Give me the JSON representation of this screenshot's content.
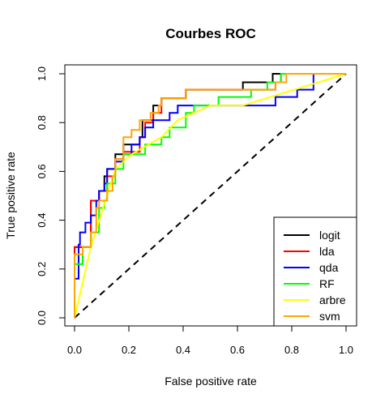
{
  "chart_data": {
    "type": "line",
    "title": "Courbes ROC",
    "xlabel": "False positive rate",
    "ylabel": "True positive rate",
    "xlim": [
      0,
      1
    ],
    "ylim": [
      0,
      1
    ],
    "xticks": [
      "0.0",
      "0.2",
      "0.4",
      "0.6",
      "0.8",
      "1.0"
    ],
    "yticks": [
      "0.0",
      "0.2",
      "0.4",
      "0.6",
      "0.8",
      "1.0"
    ],
    "legend_position": "bottom-right",
    "grid": false,
    "reference_line": {
      "style": "dashed",
      "color": "#000000",
      "points": [
        [
          0,
          0
        ],
        [
          1,
          1
        ]
      ]
    },
    "series": [
      {
        "name": "logit",
        "color": "#000000",
        "points": [
          [
            0,
            0
          ],
          [
            0,
            0.29
          ],
          [
            0.06,
            0.29
          ],
          [
            0.06,
            0.48
          ],
          [
            0.09,
            0.48
          ],
          [
            0.09,
            0.52
          ],
          [
            0.11,
            0.52
          ],
          [
            0.11,
            0.58
          ],
          [
            0.12,
            0.58
          ],
          [
            0.12,
            0.61
          ],
          [
            0.15,
            0.61
          ],
          [
            0.15,
            0.67
          ],
          [
            0.18,
            0.67
          ],
          [
            0.18,
            0.71
          ],
          [
            0.24,
            0.71
          ],
          [
            0.24,
            0.74
          ],
          [
            0.25,
            0.74
          ],
          [
            0.25,
            0.81
          ],
          [
            0.29,
            0.81
          ],
          [
            0.29,
            0.87
          ],
          [
            0.32,
            0.87
          ],
          [
            0.32,
            0.9
          ],
          [
            0.41,
            0.9
          ],
          [
            0.41,
            0.935
          ],
          [
            0.62,
            0.935
          ],
          [
            0.62,
            0.965
          ],
          [
            0.73,
            0.965
          ],
          [
            0.73,
            1.0
          ],
          [
            1,
            1
          ]
        ]
      },
      {
        "name": "lda",
        "color": "#ff0000",
        "points": [
          [
            0,
            0
          ],
          [
            0,
            0.29
          ],
          [
            0.06,
            0.29
          ],
          [
            0.06,
            0.48
          ],
          [
            0.09,
            0.48
          ],
          [
            0.09,
            0.52
          ],
          [
            0.12,
            0.52
          ],
          [
            0.12,
            0.58
          ],
          [
            0.15,
            0.58
          ],
          [
            0.15,
            0.65
          ],
          [
            0.18,
            0.65
          ],
          [
            0.18,
            0.68
          ],
          [
            0.24,
            0.68
          ],
          [
            0.24,
            0.74
          ],
          [
            0.26,
            0.74
          ],
          [
            0.26,
            0.8
          ],
          [
            0.29,
            0.8
          ],
          [
            0.29,
            0.84
          ],
          [
            0.32,
            0.84
          ],
          [
            0.32,
            0.9
          ],
          [
            0.41,
            0.9
          ],
          [
            0.41,
            0.935
          ],
          [
            0.74,
            0.935
          ],
          [
            0.74,
            0.965
          ],
          [
            0.76,
            0.965
          ],
          [
            0.76,
            1.0
          ],
          [
            1,
            1
          ]
        ]
      },
      {
        "name": "qda",
        "color": "#0000ff",
        "points": [
          [
            0,
            0
          ],
          [
            0,
            0.16
          ],
          [
            0.015,
            0.16
          ],
          [
            0.015,
            0.3
          ],
          [
            0.02,
            0.3
          ],
          [
            0.02,
            0.35
          ],
          [
            0.04,
            0.35
          ],
          [
            0.04,
            0.39
          ],
          [
            0.06,
            0.39
          ],
          [
            0.06,
            0.42
          ],
          [
            0.08,
            0.42
          ],
          [
            0.08,
            0.48
          ],
          [
            0.09,
            0.48
          ],
          [
            0.09,
            0.52
          ],
          [
            0.11,
            0.52
          ],
          [
            0.11,
            0.55
          ],
          [
            0.12,
            0.55
          ],
          [
            0.12,
            0.61
          ],
          [
            0.15,
            0.61
          ],
          [
            0.15,
            0.64
          ],
          [
            0.18,
            0.64
          ],
          [
            0.18,
            0.67
          ],
          [
            0.21,
            0.67
          ],
          [
            0.21,
            0.71
          ],
          [
            0.24,
            0.71
          ],
          [
            0.24,
            0.74
          ],
          [
            0.26,
            0.74
          ],
          [
            0.26,
            0.78
          ],
          [
            0.29,
            0.78
          ],
          [
            0.29,
            0.81
          ],
          [
            0.35,
            0.81
          ],
          [
            0.35,
            0.84
          ],
          [
            0.38,
            0.84
          ],
          [
            0.38,
            0.87
          ],
          [
            0.74,
            0.87
          ],
          [
            0.74,
            0.905
          ],
          [
            0.82,
            0.905
          ],
          [
            0.82,
            0.935
          ],
          [
            0.88,
            0.935
          ],
          [
            0.88,
            0.965
          ],
          [
            0.88,
            1.0
          ],
          [
            1,
            1
          ]
        ]
      },
      {
        "name": "RF",
        "color": "#00ff00",
        "points": [
          [
            0,
            0
          ],
          [
            0,
            0.22
          ],
          [
            0.03,
            0.22
          ],
          [
            0.03,
            0.29
          ],
          [
            0.06,
            0.29
          ],
          [
            0.06,
            0.35
          ],
          [
            0.09,
            0.35
          ],
          [
            0.09,
            0.45
          ],
          [
            0.11,
            0.45
          ],
          [
            0.11,
            0.48
          ],
          [
            0.12,
            0.48
          ],
          [
            0.12,
            0.55
          ],
          [
            0.15,
            0.55
          ],
          [
            0.15,
            0.61
          ],
          [
            0.18,
            0.61
          ],
          [
            0.18,
            0.67
          ],
          [
            0.26,
            0.67
          ],
          [
            0.26,
            0.71
          ],
          [
            0.32,
            0.71
          ],
          [
            0.32,
            0.74
          ],
          [
            0.35,
            0.74
          ],
          [
            0.35,
            0.78
          ],
          [
            0.41,
            0.78
          ],
          [
            0.41,
            0.84
          ],
          [
            0.44,
            0.84
          ],
          [
            0.44,
            0.87
          ],
          [
            0.53,
            0.87
          ],
          [
            0.53,
            0.905
          ],
          [
            0.65,
            0.905
          ],
          [
            0.65,
            0.935
          ],
          [
            0.71,
            0.935
          ],
          [
            0.71,
            0.965
          ],
          [
            0.76,
            0.965
          ],
          [
            0.76,
            1.0
          ],
          [
            1,
            1
          ]
        ]
      },
      {
        "name": "arbre",
        "color": "#ffff00",
        "points": [
          [
            0,
            0
          ],
          [
            0.06,
            0.29
          ],
          [
            0.15,
            0.61
          ],
          [
            0.21,
            0.67
          ],
          [
            0.32,
            0.74
          ],
          [
            0.38,
            0.81
          ],
          [
            0.5,
            0.87
          ],
          [
            0.62,
            0.87
          ],
          [
            1,
            1
          ]
        ]
      },
      {
        "name": "svm",
        "color": "#ffa500",
        "points": [
          [
            0,
            0
          ],
          [
            0,
            0.26
          ],
          [
            0.03,
            0.26
          ],
          [
            0.03,
            0.29
          ],
          [
            0.06,
            0.29
          ],
          [
            0.06,
            0.35
          ],
          [
            0.08,
            0.35
          ],
          [
            0.08,
            0.45
          ],
          [
            0.09,
            0.45
          ],
          [
            0.09,
            0.48
          ],
          [
            0.12,
            0.48
          ],
          [
            0.12,
            0.52
          ],
          [
            0.14,
            0.52
          ],
          [
            0.14,
            0.58
          ],
          [
            0.15,
            0.58
          ],
          [
            0.15,
            0.65
          ],
          [
            0.18,
            0.65
          ],
          [
            0.18,
            0.74
          ],
          [
            0.21,
            0.74
          ],
          [
            0.21,
            0.77
          ],
          [
            0.24,
            0.77
          ],
          [
            0.24,
            0.81
          ],
          [
            0.28,
            0.81
          ],
          [
            0.28,
            0.84
          ],
          [
            0.31,
            0.84
          ],
          [
            0.31,
            0.87
          ],
          [
            0.32,
            0.87
          ],
          [
            0.32,
            0.9
          ],
          [
            0.41,
            0.9
          ],
          [
            0.41,
            0.935
          ],
          [
            0.74,
            0.935
          ],
          [
            0.74,
            0.965
          ],
          [
            0.78,
            0.965
          ],
          [
            0.78,
            1.0
          ],
          [
            1,
            1
          ]
        ]
      }
    ]
  }
}
